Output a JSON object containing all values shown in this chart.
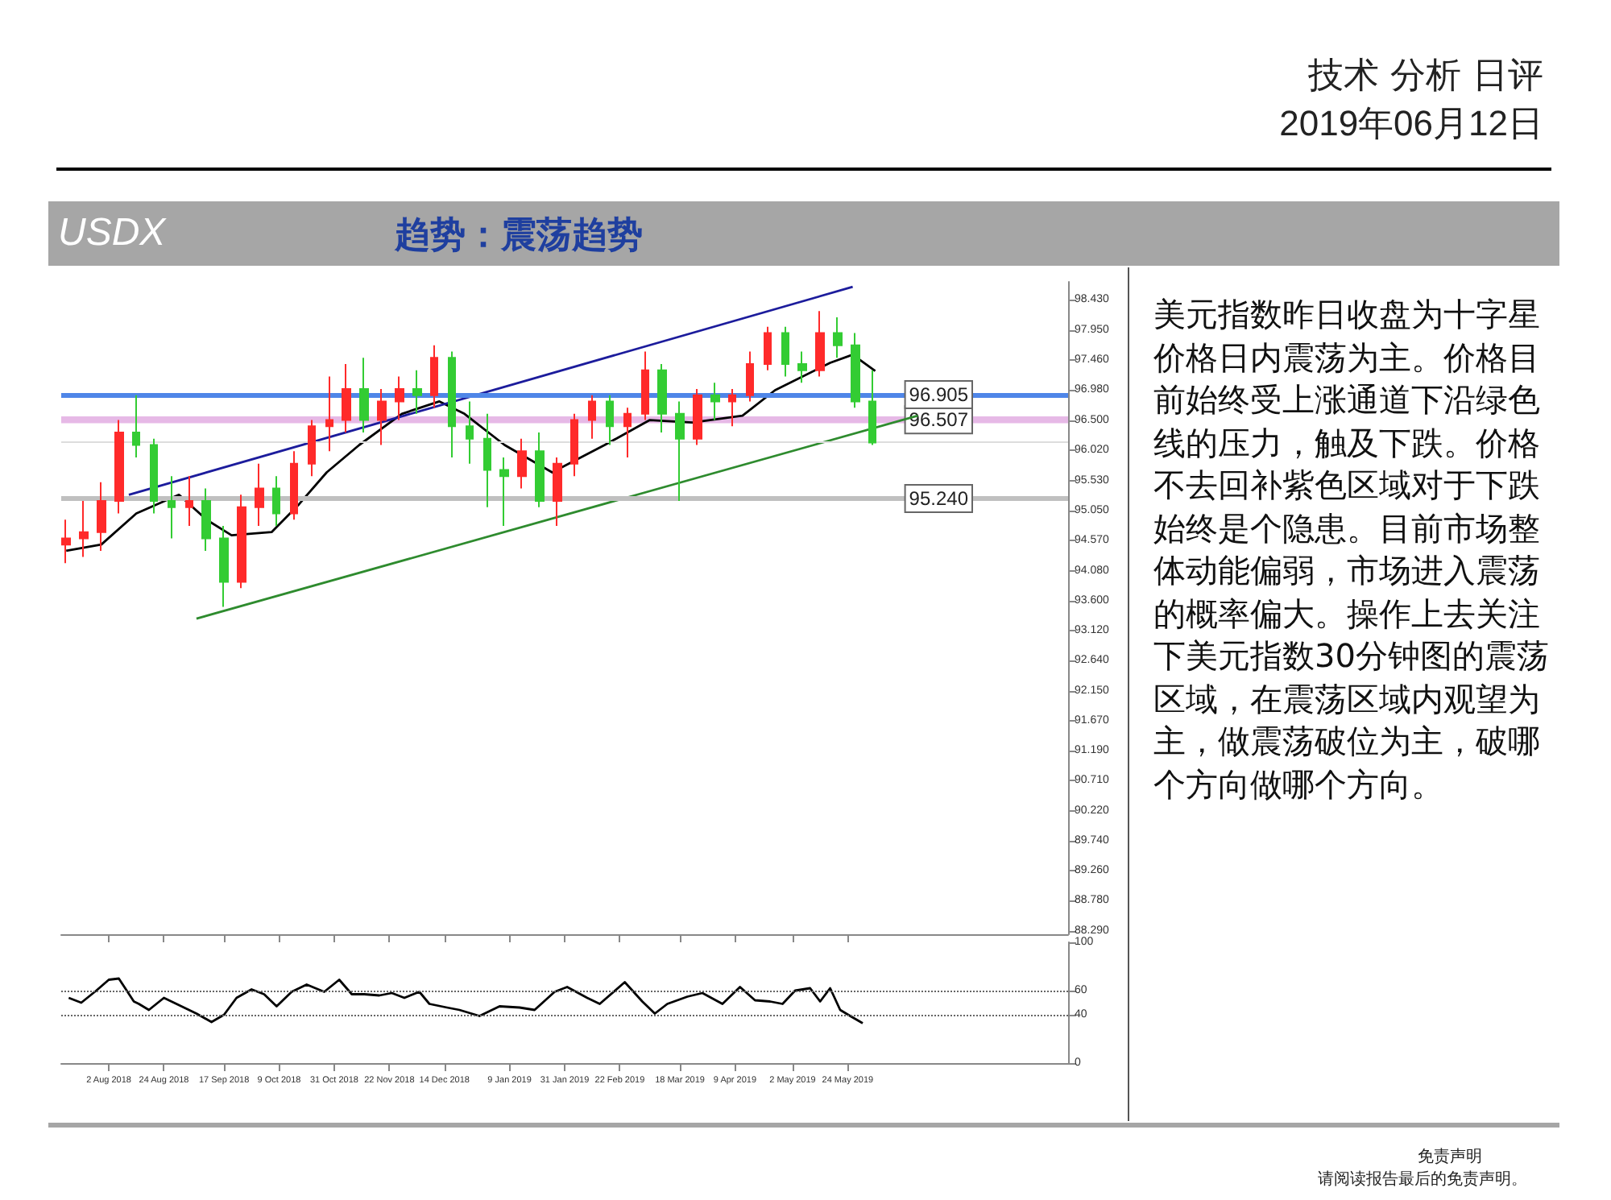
{
  "chart_data": [
    {
      "type": "candlestick",
      "title": "USDX",
      "subtitle": "趋势：震荡趋势",
      "annotations": [
        "技术 分析 日评",
        "2019年06月12日",
        "美元指数昨日收盘为十字星价格日内震荡为主。价格目前始终受上涨通道下沿绿色线的压力，触及下跌。价格不去回补紫色区域对于下跌始终是个隐患。目前市场整体动能偏弱，市场进入震荡的概率偏大。操作上去关注下美元指数30分钟图的震荡区域，在震荡区域内观望为主，做震荡破位为主，破哪个方向做哪个方向。",
        "免责声明",
        "请阅读报告最后的免责声明。"
      ],
      "x": [
        "2018-07-16",
        "2018-07-23",
        "2018-07-30",
        "2018-08-06",
        "2018-08-13",
        "2018-08-20",
        "2018-08-27",
        "2018-09-03",
        "2018-09-10",
        "2018-09-17",
        "2018-09-24",
        "2018-10-01",
        "2018-10-08",
        "2018-10-15",
        "2018-10-22",
        "2018-10-29",
        "2018-11-05",
        "2018-11-12",
        "2018-11-19",
        "2018-11-26",
        "2018-12-03",
        "2018-12-10",
        "2018-12-17",
        "2018-12-24",
        "2018-12-31",
        "2019-01-07",
        "2019-01-14",
        "2019-01-21",
        "2019-01-28",
        "2019-02-04",
        "2019-02-11",
        "2019-02-18",
        "2019-02-25",
        "2019-03-04",
        "2019-03-11",
        "2019-03-18",
        "2019-03-25",
        "2019-04-01",
        "2019-04-08",
        "2019-04-15",
        "2019-04-22",
        "2019-04-29",
        "2019-05-06",
        "2019-05-13",
        "2019-05-20",
        "2019-05-27",
        "2019-06-03"
      ],
      "ohlc": [
        [
          94.5,
          94.9,
          94.2,
          94.6
        ],
        [
          94.6,
          95.2,
          94.3,
          94.7
        ],
        [
          94.7,
          95.5,
          94.4,
          95.2
        ],
        [
          95.2,
          96.5,
          95.0,
          96.3
        ],
        [
          96.3,
          96.9,
          95.9,
          96.1
        ],
        [
          96.1,
          96.2,
          95.0,
          95.2
        ],
        [
          95.2,
          95.6,
          94.6,
          95.1
        ],
        [
          95.1,
          95.6,
          94.8,
          95.2
        ],
        [
          95.2,
          95.4,
          94.4,
          94.6
        ],
        [
          94.6,
          94.8,
          93.5,
          93.9
        ],
        [
          93.9,
          95.3,
          93.8,
          95.1
        ],
        [
          95.1,
          95.8,
          94.8,
          95.4
        ],
        [
          95.4,
          95.6,
          94.8,
          95.0
        ],
        [
          95.0,
          96.0,
          94.9,
          95.8
        ],
        [
          95.8,
          96.5,
          95.6,
          96.4
        ],
        [
          96.4,
          97.2,
          96.0,
          96.5
        ],
        [
          96.5,
          97.4,
          96.3,
          97.0
        ],
        [
          97.0,
          97.5,
          96.3,
          96.5
        ],
        [
          96.5,
          97.0,
          96.1,
          96.8
        ],
        [
          96.8,
          97.2,
          96.5,
          97.0
        ],
        [
          97.0,
          97.3,
          96.6,
          96.9
        ],
        [
          96.9,
          97.7,
          96.7,
          97.5
        ],
        [
          97.5,
          97.6,
          95.9,
          96.4
        ],
        [
          96.4,
          96.8,
          95.8,
          96.2
        ],
        [
          96.2,
          96.6,
          95.1,
          95.7
        ],
        [
          95.7,
          95.9,
          94.8,
          95.6
        ],
        [
          95.6,
          96.2,
          95.4,
          96.0
        ],
        [
          96.0,
          96.3,
          95.1,
          95.2
        ],
        [
          95.2,
          95.9,
          94.8,
          95.8
        ],
        [
          95.8,
          96.6,
          95.6,
          96.5
        ],
        [
          96.5,
          96.9,
          96.2,
          96.8
        ],
        [
          96.8,
          96.9,
          96.1,
          96.4
        ],
        [
          96.4,
          96.7,
          95.9,
          96.6
        ],
        [
          96.6,
          97.6,
          96.5,
          97.3
        ],
        [
          97.3,
          97.4,
          96.3,
          96.6
        ],
        [
          96.6,
          96.8,
          95.2,
          96.2
        ],
        [
          96.2,
          97.0,
          96.1,
          96.9
        ],
        [
          96.9,
          97.1,
          96.5,
          96.8
        ],
        [
          96.8,
          97.0,
          96.4,
          96.9
        ],
        [
          96.9,
          97.6,
          96.8,
          97.4
        ],
        [
          97.4,
          98.0,
          97.3,
          97.9
        ],
        [
          97.9,
          98.0,
          97.2,
          97.4
        ],
        [
          97.4,
          97.6,
          97.1,
          97.3
        ],
        [
          97.3,
          98.25,
          97.2,
          97.9
        ],
        [
          97.9,
          98.15,
          97.5,
          97.7
        ],
        [
          97.7,
          97.9,
          96.7,
          96.8
        ],
        [
          96.8,
          97.3,
          96.1,
          96.14
        ]
      ],
      "colors": [
        "#ff2a2a",
        "#ff2a2a",
        "#ff2a2a",
        "#ff2a2a",
        "#33cc33",
        "#33cc33",
        "#33cc33",
        "#ff2a2a",
        "#33cc33",
        "#33cc33",
        "#ff2a2a",
        "#ff2a2a",
        "#33cc33",
        "#ff2a2a",
        "#ff2a2a",
        "#ff2a2a",
        "#ff2a2a",
        "#33cc33",
        "#ff2a2a",
        "#ff2a2a",
        "#33cc33",
        "#ff2a2a",
        "#33cc33",
        "#33cc33",
        "#33cc33",
        "#33cc33",
        "#ff2a2a",
        "#33cc33",
        "#ff2a2a",
        "#ff2a2a",
        "#ff2a2a",
        "#33cc33",
        "#ff2a2a",
        "#ff2a2a",
        "#33cc33",
        "#33cc33",
        "#ff2a2a",
        "#33cc33",
        "#ff2a2a",
        "#ff2a2a",
        "#ff2a2a",
        "#33cc33",
        "#33cc33",
        "#ff2a2a",
        "#33cc33",
        "#33cc33",
        "#33cc33"
      ],
      "series": [
        {
          "type": "line",
          "color": "#000000",
          "x": [
            "2018-07-16",
            "2018-07-30",
            "2018-08-13",
            "2018-08-30",
            "2018-09-10",
            "2018-09-20",
            "2018-10-06",
            "2018-10-17",
            "2018-10-28",
            "2018-11-10",
            "2018-11-27",
            "2018-12-12",
            "2018-12-22",
            "2019-01-07",
            "2019-01-26",
            "2019-02-16",
            "2019-03-06",
            "2019-03-23",
            "2019-04-12",
            "2019-04-25",
            "2019-05-17",
            "2019-05-26",
            "2019-06-04"
          ],
          "values": [
            94.4,
            94.5,
            95.0,
            95.3,
            94.9,
            94.65,
            94.7,
            95.15,
            95.66,
            96.1,
            96.6,
            96.8,
            96.6,
            96.1,
            95.66,
            96.1,
            96.5,
            96.46,
            96.57,
            96.98,
            97.42,
            97.55,
            97.29
          ]
        },
        {
          "type": "line",
          "color": "#1c1c9c",
          "x": [
            "2018-08-10",
            "2019-05-26"
          ],
          "values": [
            95.3,
            98.64
          ]
        },
        {
          "type": "line",
          "color": "#2e8b2e",
          "x": [
            "2018-09-06",
            "2019-06-21"
          ],
          "values": [
            93.31,
            96.57
          ]
        }
      ],
      "xlim": [
        "2018-07-14",
        "2019-08-20"
      ],
      "ylim": [
        88.24,
        98.72
      ],
      "xticks": [
        {
          "value": "2018-08-02",
          "label": null
        },
        {
          "value": "2018-08-24",
          "label": null
        },
        {
          "value": "2018-09-17",
          "label": null
        },
        {
          "value": "2018-10-09",
          "label": null
        },
        {
          "value": "2018-10-31",
          "label": null
        },
        {
          "value": "2018-11-22",
          "label": null
        },
        {
          "value": "2018-12-14",
          "label": null
        },
        {
          "value": "2019-01-09",
          "label": null
        },
        {
          "value": "2019-01-31",
          "label": null
        },
        {
          "value": "2019-02-22",
          "label": null
        },
        {
          "value": "2019-03-18",
          "label": null
        },
        {
          "value": "2019-04-09",
          "label": null
        },
        {
          "value": "2019-05-02",
          "label": null
        },
        {
          "value": "2019-05-24",
          "label": null
        }
      ],
      "yticks": [
        {
          "value": 98.43,
          "label": "98.430"
        },
        {
          "value": 97.95,
          "label": "97.950"
        },
        {
          "value": 97.46,
          "label": "97.460"
        },
        {
          "value": 96.98,
          "label": "96.980"
        },
        {
          "value": 96.5,
          "label": "96.500"
        },
        {
          "value": 96.02,
          "label": "96.020"
        },
        {
          "value": 95.53,
          "label": "95.530"
        },
        {
          "value": 95.05,
          "label": "95.050"
        },
        {
          "value": 94.57,
          "label": "94.570"
        },
        {
          "value": 94.08,
          "label": "94.080"
        },
        {
          "value": 93.6,
          "label": "93.600"
        },
        {
          "value": 93.12,
          "label": "93.120"
        },
        {
          "value": 92.64,
          "label": "92.640"
        },
        {
          "value": 92.15,
          "label": "92.150"
        },
        {
          "value": 91.67,
          "label": "91.670"
        },
        {
          "value": 91.19,
          "label": "91.190"
        },
        {
          "value": 90.71,
          "label": "90.710"
        },
        {
          "value": 90.22,
          "label": "90.220"
        },
        {
          "value": 89.74,
          "label": "89.740"
        },
        {
          "value": 89.26,
          "label": "89.260"
        },
        {
          "value": 88.78,
          "label": "88.780"
        },
        {
          "value": 88.29,
          "label": "88.290"
        }
      ],
      "tick_labels": "y",
      "marker": "none",
      "ref_lines": [
        {
          "axis": "y",
          "value": 96.905,
          "label": "96.905",
          "color": "#4f86e8"
        },
        {
          "axis": "y",
          "value": 95.24,
          "label": "95.240",
          "color": "#c0c0c0"
        },
        {
          "axis": "y",
          "value": 96.14,
          "color": "#dddddd"
        }
      ],
      "bands": [
        {
          "axis": "y",
          "from": 96.45,
          "to": 96.56,
          "label": "96.507",
          "color": "#e0a8e0"
        }
      ]
    },
    {
      "type": "line",
      "series": [
        {
          "color": "#000000",
          "x": [
            "2018-07-17",
            "2018-07-22",
            "2018-07-28",
            "2018-08-02",
            "2018-08-06",
            "2018-08-12",
            "2018-08-14",
            "2018-08-18",
            "2018-08-24",
            "2018-08-29",
            "2018-09-06",
            "2018-09-12",
            "2018-09-17",
            "2018-09-22",
            "2018-09-28",
            "2018-10-03",
            "2018-10-08",
            "2018-10-14",
            "2018-10-20",
            "2018-10-27",
            "2018-11-02",
            "2018-11-07",
            "2018-11-12",
            "2018-11-18",
            "2018-11-23",
            "2018-11-28",
            "2018-12-04",
            "2018-12-08",
            "2018-12-15",
            "2018-12-20",
            "2018-12-28",
            "2019-01-05",
            "2019-01-13",
            "2019-01-19",
            "2019-01-27",
            "2019-02-01",
            "2019-02-09",
            "2019-02-14",
            "2019-02-24",
            "2019-03-03",
            "2019-03-08",
            "2019-03-13",
            "2019-03-21",
            "2019-03-27",
            "2019-04-04",
            "2019-04-11",
            "2019-04-17",
            "2019-04-23",
            "2019-04-28",
            "2019-05-03",
            "2019-05-09",
            "2019-05-13",
            "2019-05-17",
            "2019-05-21",
            "2019-05-25",
            "2019-05-30"
          ],
          "values": [
            54,
            50,
            60,
            69,
            70,
            51,
            49,
            44,
            54,
            49,
            41,
            34,
            40,
            54,
            61,
            57,
            47,
            59,
            65,
            59,
            69,
            57,
            57,
            56,
            58,
            54,
            59,
            49,
            46,
            44,
            39,
            47,
            46,
            44,
            59,
            63,
            54,
            49,
            67,
            51,
            41,
            49,
            55,
            58,
            49,
            63,
            52,
            51,
            49,
            60,
            62,
            51,
            62,
            44,
            39,
            33
          ]
        }
      ],
      "xlim": [
        "2018-07-14",
        "2019-08-20"
      ],
      "ylim": [
        0,
        100
      ],
      "xticks": [
        {
          "value": "2018-08-02",
          "label": "2 Aug 2018"
        },
        {
          "value": "2018-08-24",
          "label": "24 Aug 2018"
        },
        {
          "value": "2018-09-17",
          "label": "17 Sep 2018"
        },
        {
          "value": "2018-10-09",
          "label": "9 Oct 2018"
        },
        {
          "value": "2018-10-31",
          "label": "31 Oct 2018"
        },
        {
          "value": "2018-11-22",
          "label": "22 Nov 2018"
        },
        {
          "value": "2018-12-14",
          "label": "14 Dec 2018"
        },
        {
          "value": "2019-01-09",
          "label": "9 Jan 2019"
        },
        {
          "value": "2019-01-31",
          "label": "31 Jan 2019"
        },
        {
          "value": "2019-02-22",
          "label": "22 Feb 2019"
        },
        {
          "value": "2019-03-18",
          "label": "18 Mar 2019"
        },
        {
          "value": "2019-04-09",
          "label": "9 Apr 2019"
        },
        {
          "value": "2019-05-02",
          "label": "2 May 2019"
        },
        {
          "value": "2019-05-24",
          "label": "24 May 2019"
        }
      ],
      "yticks": [
        0,
        40,
        60,
        100
      ],
      "marker": "none",
      "ref_lines": [
        {
          "axis": "y",
          "value": 40,
          "color": "#666666",
          "line_style": "dotted"
        },
        {
          "axis": "y",
          "value": 60,
          "color": "#666666",
          "line_style": "dotted"
        }
      ]
    }
  ]
}
